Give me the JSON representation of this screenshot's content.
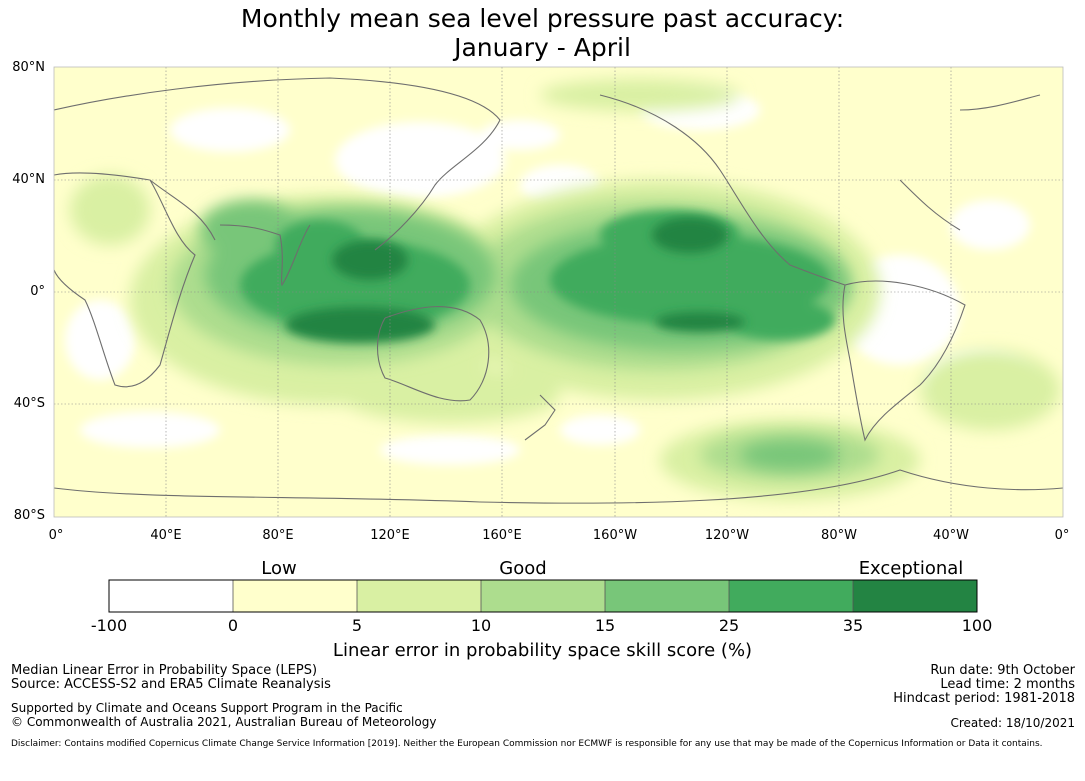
{
  "title": {
    "line1": "Monthly mean sea level pressure past accuracy:",
    "line2": "January - April"
  },
  "map": {
    "lat_labels": [
      "80°N",
      "40°N",
      "0°",
      "40°S",
      "80°S"
    ],
    "lon_labels": [
      "0°",
      "40°E",
      "80°E",
      "120°E",
      "160°E",
      "160°W",
      "120°W",
      "80°W",
      "40°W",
      "0°"
    ]
  },
  "legend": {
    "categories": [
      "Low",
      "Good",
      "Exceptional"
    ],
    "ticks": [
      "-100",
      "0",
      "5",
      "10",
      "15",
      "25",
      "35",
      "100"
    ],
    "colors": [
      "#ffffff",
      "#ffffcc",
      "#d9f0a3",
      "#addd8e",
      "#78c679",
      "#41ab5d",
      "#238443"
    ],
    "label": "Linear error in probability space skill score (%)"
  },
  "footer": {
    "method": "Median Linear Error in Probability Space (LEPS)",
    "source": "Source: ACCESS-S2 and ERA5 Climate Reanalysis",
    "run_date": "Run date: 9th October",
    "lead_time": "Lead time: 2 months",
    "hindcast": "Hindcast period: 1981-2018",
    "supported": "Supported by Climate and Oceans Support Program in the Pacific",
    "copyright": "© Commonwealth of Australia 2021, Australian Bureau of Meteorology",
    "created": "Created: 18/10/2021",
    "disclaimer": "Disclaimer: Contains modified Copernicus Climate Change Service Information [2019]. Neither the European Commission nor ECMWF is responsible for any use that may be made of the Copernicus Information or Data it contains."
  }
}
